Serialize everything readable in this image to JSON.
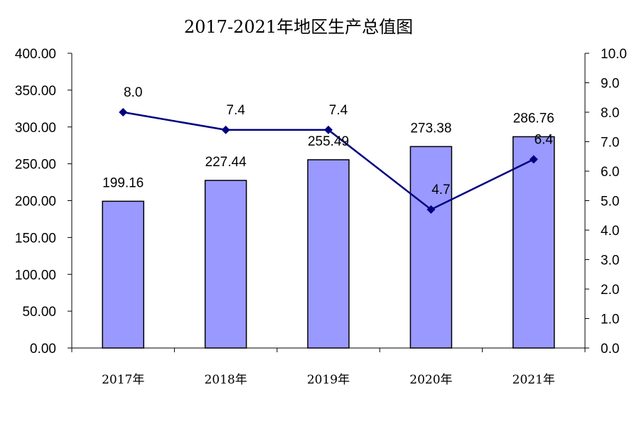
{
  "chart_data": {
    "type": "bar",
    "title": "2017-2021年地区生产总值图",
    "categories": [
      "2017年",
      "2018年",
      "2019年",
      "2020年",
      "2021年"
    ],
    "series": [
      {
        "type": "bar",
        "axis": "left",
        "values": [
          199.16,
          227.44,
          255.49,
          273.38,
          286.76
        ],
        "labels": [
          "199.16",
          "227.44",
          "255.49",
          "273.38",
          "286.76"
        ]
      },
      {
        "type": "line",
        "axis": "right",
        "values": [
          8.0,
          7.4,
          7.4,
          4.7,
          6.4
        ],
        "labels": [
          "8.0",
          "7.4",
          "7.4",
          "4.7",
          "6.4"
        ]
      }
    ],
    "y_left": {
      "min": 0,
      "max": 400,
      "step": 50,
      "ticks": [
        "0.00",
        "50.00",
        "100.00",
        "150.00",
        "200.00",
        "250.00",
        "300.00",
        "350.00",
        "400.00"
      ]
    },
    "y_right": {
      "min": 0,
      "max": 10,
      "step": 1,
      "ticks": [
        "0.0",
        "1.0",
        "2.0",
        "3.0",
        "4.0",
        "5.0",
        "6.0",
        "7.0",
        "8.0",
        "9.0",
        "10.0"
      ]
    },
    "grid": false,
    "legend": "none",
    "colors": {
      "bar_fill": "#9999ff",
      "bar_stroke": "#000000",
      "line": "#000080",
      "marker": "#000080",
      "axis": "#000000"
    }
  }
}
